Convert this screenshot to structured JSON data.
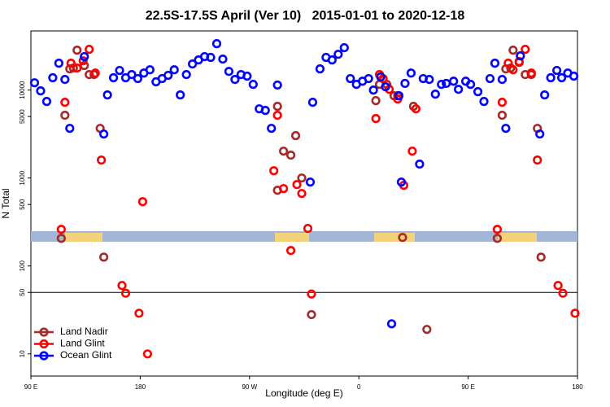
{
  "chart_data": {
    "type": "scatter",
    "title": "22.5S-17.5S April (Ver 10)   2015-01-01 to 2020-12-18",
    "x_label": "Longitude (deg E)",
    "y_label": "N Total",
    "xlim": [
      90,
      540
    ],
    "ylim": [
      5.6,
      47000
    ],
    "ylog": true,
    "legend": "lower left",
    "reference_line": 50,
    "xticks": [
      {
        "value": 90,
        "label": "90 E"
      },
      {
        "value": 180,
        "label": "180"
      },
      {
        "value": 270,
        "label": "90 W"
      },
      {
        "value": 360,
        "label": "0"
      },
      {
        "value": 450,
        "label": "90 E"
      },
      {
        "value": 540,
        "label": "180"
      }
    ],
    "yticks": [
      10,
      50,
      100,
      500,
      1000,
      5000,
      10000
    ],
    "series": [
      {
        "name": "Land Nadir",
        "color": "#a52a2a",
        "x": [
          115,
          118,
          122,
          125,
          128,
          134,
          138,
          142,
          147,
          150,
          293,
          293,
          298,
          304,
          308,
          313,
          321,
          374,
          377,
          383,
          389,
          392,
          396,
          405,
          416,
          474,
          478,
          481,
          485,
          487,
          492,
          497,
          502,
          507,
          510
        ],
        "values": [
          206,
          5170,
          17400,
          17800,
          28400,
          19000,
          15000,
          15000,
          3670,
          126,
          6530,
          726,
          2020,
          1820,
          3030,
          1000,
          28,
          7580,
          11600,
          11600,
          8610,
          8610,
          211,
          6530,
          19,
          206,
          5170,
          17400,
          17800,
          28400,
          20600,
          15000,
          15000,
          3670,
          126
        ]
      },
      {
        "name": "Land Glint",
        "color": "#ff0000",
        "x": [
          115,
          118,
          123,
          128,
          133,
          138,
          143,
          148,
          165,
          168,
          179,
          182,
          186,
          290,
          293,
          298,
          304,
          309,
          313,
          318,
          321,
          374,
          377,
          380,
          385,
          392,
          397,
          404,
          407,
          474,
          478,
          483,
          487,
          492,
          497,
          502,
          507,
          524,
          528,
          538
        ],
        "values": [
          261,
          7260,
          20200,
          17800,
          21500,
          29000,
          15600,
          1600,
          60,
          49,
          29,
          538,
          10,
          1210,
          5170,
          758,
          150,
          843,
          667,
          267,
          48,
          4740,
          15000,
          13500,
          10200,
          7910,
          826,
          2020,
          6120,
          261,
          7260,
          20200,
          17000,
          21100,
          29000,
          15600,
          1600,
          60,
          49,
          29
        ]
      },
      {
        "name": "Ocean Glint",
        "color": "#0000ff",
        "x": [
          93,
          98,
          103,
          108,
          113,
          118,
          122,
          134,
          150,
          153,
          158,
          163,
          168,
          173,
          178,
          183,
          188,
          193,
          198,
          203,
          208,
          213,
          218,
          223,
          228,
          233,
          238,
          243,
          248,
          253,
          258,
          263,
          268,
          273,
          278,
          283,
          288,
          293,
          320,
          322,
          328,
          333,
          338,
          343,
          348,
          353,
          358,
          363,
          368,
          372,
          378,
          382,
          387,
          393,
          395,
          398,
          403,
          410,
          413,
          418,
          423,
          428,
          432,
          438,
          442,
          448,
          452,
          458,
          463,
          468,
          472,
          478,
          481,
          493,
          509,
          513,
          518,
          523,
          527,
          532,
          537
        ],
        "values": [
          12100,
          9790,
          7420,
          13800,
          20200,
          13200,
          3670,
          24000,
          3160,
          8800,
          13800,
          16700,
          13800,
          15000,
          13500,
          15600,
          17000,
          12400,
          13500,
          14700,
          17000,
          8800,
          15000,
          19800,
          22000,
          24000,
          23500,
          33700,
          22500,
          16300,
          13200,
          15000,
          14400,
          11600,
          6120,
          5870,
          3670,
          11400,
          899,
          7260,
          17400,
          23500,
          22000,
          25500,
          30300,
          13500,
          11600,
          12600,
          13500,
          10000,
          14100,
          10900,
          22,
          8610,
          899,
          11900,
          15600,
          1440,
          13500,
          13200,
          8990,
          11600,
          11900,
          12600,
          10200,
          12600,
          11600,
          9580,
          7420,
          13500,
          20200,
          13200,
          3670,
          24500,
          3160,
          8800,
          13800,
          16700,
          13800,
          15600,
          14400
        ]
      }
    ]
  }
}
